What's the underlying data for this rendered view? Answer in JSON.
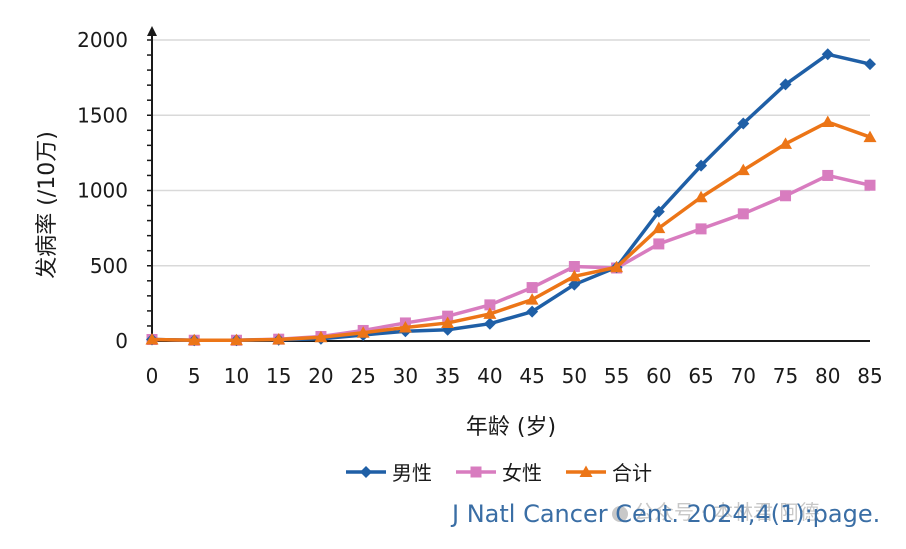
{
  "chart_data": {
    "type": "line",
    "x": [
      0,
      5,
      10,
      15,
      20,
      25,
      30,
      35,
      40,
      45,
      50,
      55,
      60,
      65,
      70,
      75,
      80,
      85
    ],
    "series": [
      {
        "name": "男性",
        "color": "#1f5fa6",
        "marker": "diamond",
        "values": [
          10,
          5,
          5,
          8,
          15,
          40,
          65,
          75,
          115,
          195,
          375,
          490,
          860,
          1165,
          1445,
          1705,
          1905,
          1840
        ]
      },
      {
        "name": "女性",
        "color": "#d87cbf",
        "marker": "square",
        "values": [
          10,
          5,
          5,
          12,
          30,
          70,
          120,
          165,
          240,
          355,
          495,
          485,
          645,
          745,
          845,
          965,
          1100,
          1035
        ]
      },
      {
        "name": "合计",
        "color": "#ec7517",
        "marker": "triangle",
        "values": [
          10,
          5,
          5,
          10,
          25,
          55,
          90,
          120,
          180,
          275,
          430,
          490,
          750,
          955,
          1135,
          1310,
          1455,
          1355
        ]
      }
    ],
    "xlabel": "年龄 (岁)",
    "ylabel": "发病率 (/10万)",
    "ylim": [
      0,
      2000
    ],
    "yticks": [
      0,
      500,
      1000,
      1500,
      2000
    ],
    "grid": true,
    "legend": "bottom"
  },
  "citation": "J Natl Cancer Cent. 2024,4(1):page.",
  "watermark": "公众号 · 本林君 阿德"
}
